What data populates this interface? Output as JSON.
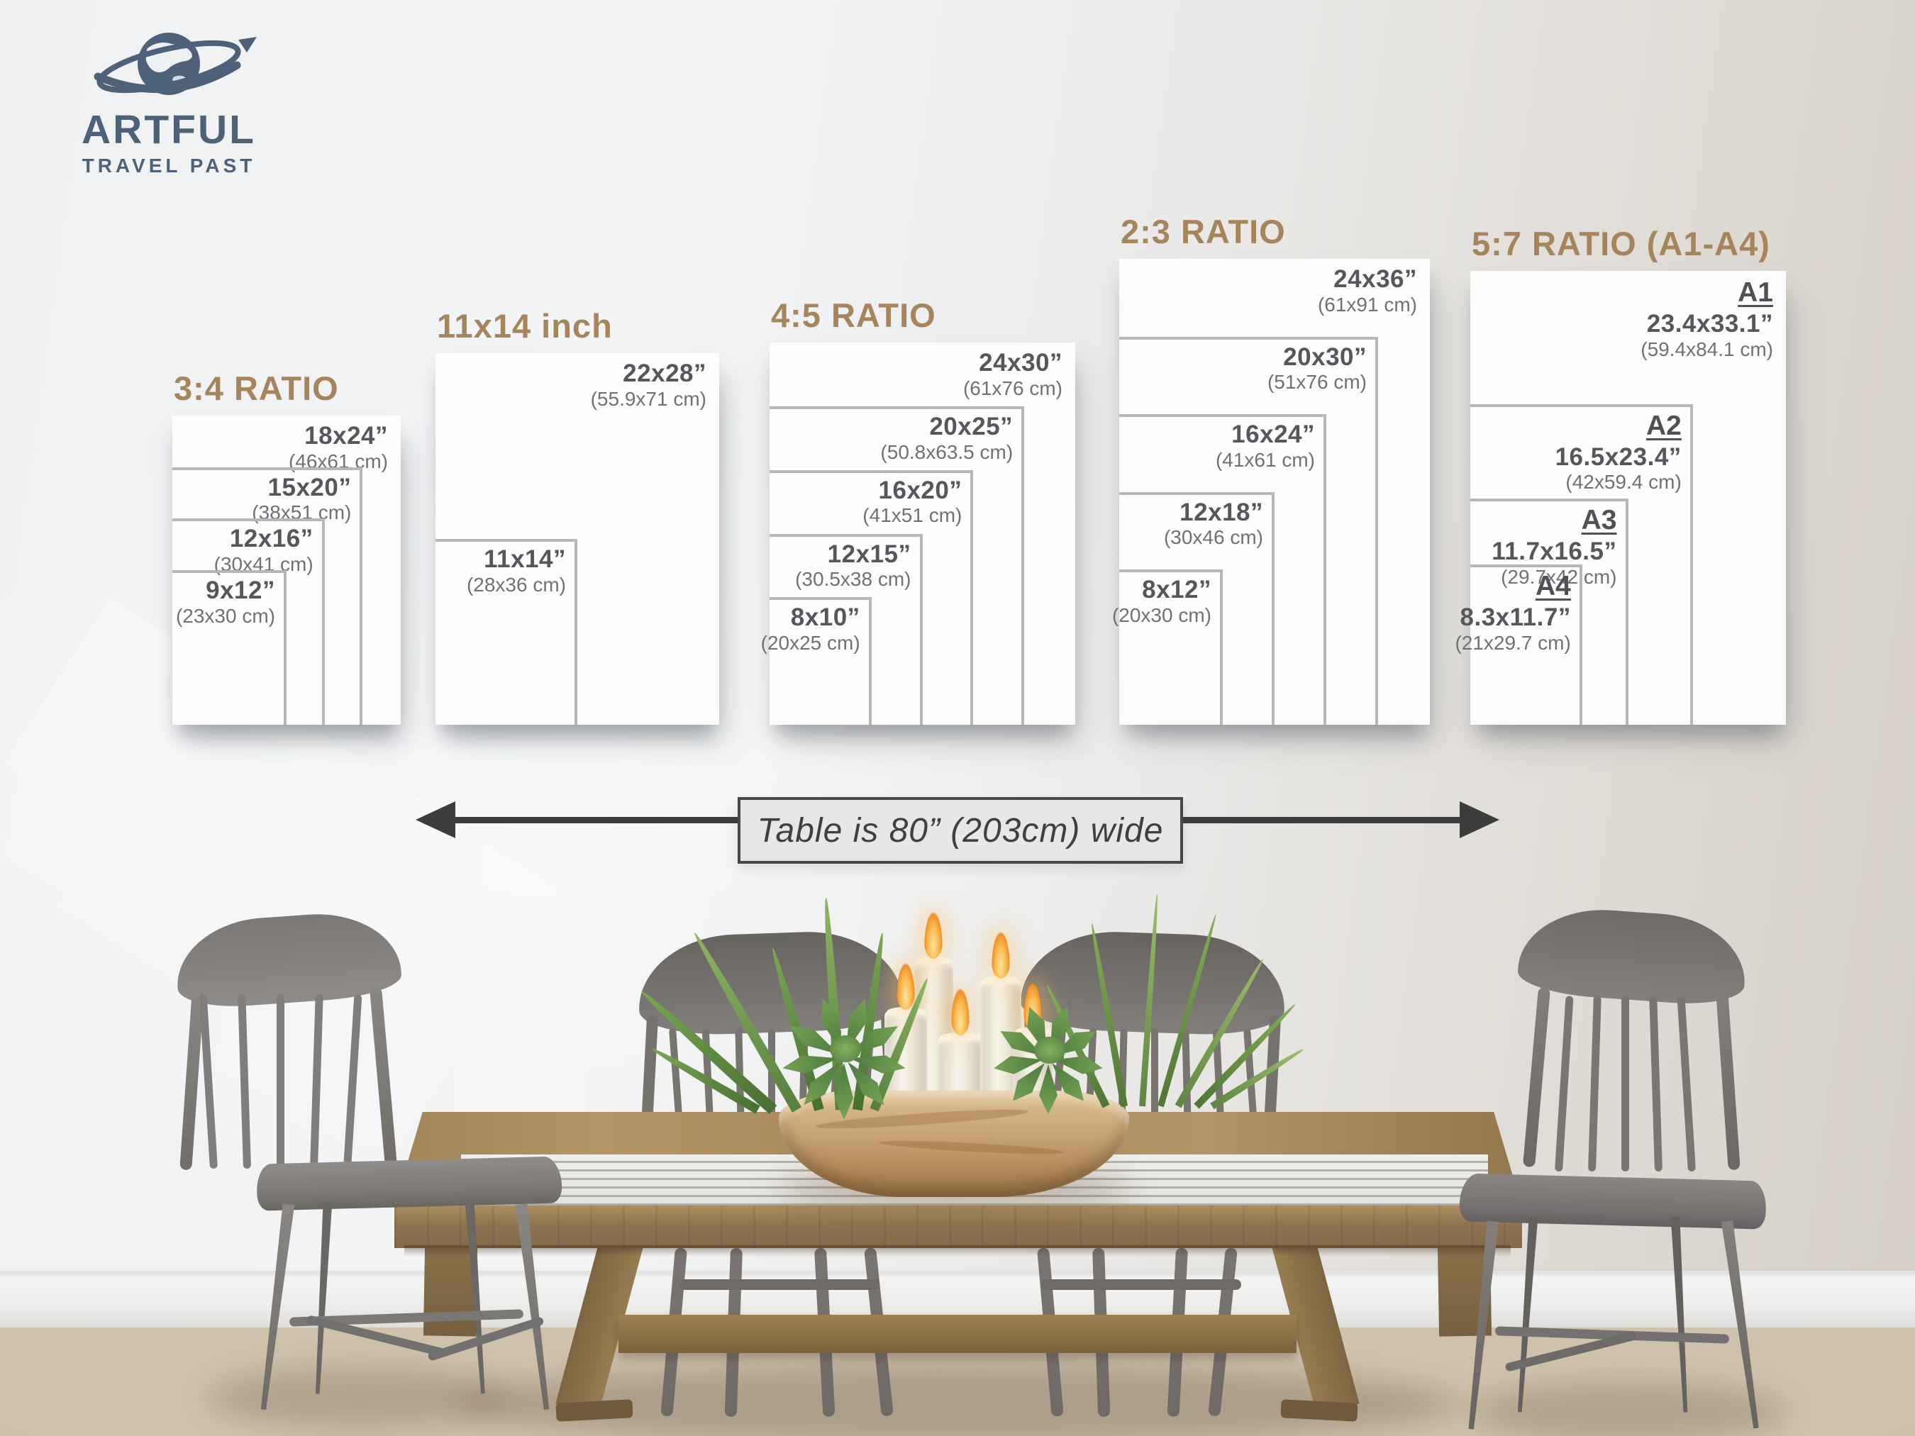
{
  "brand": {
    "line1": "ARTFUL",
    "line2": "TRAVEL PAST"
  },
  "icons": {
    "logo": "globe-orbit-icon",
    "width_arrow": "double-arrow-icon"
  },
  "colors": {
    "title_tan": "#a5855c",
    "label_dark": "#54575b",
    "label_muted": "#6e7175",
    "frame_gray": "#b5b8bb",
    "logo_blue": "#4d6278",
    "arrow_dark": "#3c3d3d",
    "poster_white": "#fdfdfd"
  },
  "table_note": "Table is 80” (203cm) wide",
  "size_groups": [
    {
      "title": "3:4 RATIO",
      "sizes": [
        {
          "inches": "18x24”",
          "cm": "(46x61 cm)",
          "w_in": 18,
          "h_in": 24
        },
        {
          "inches": "15x20”",
          "cm": "(38x51 cm)",
          "w_in": 15,
          "h_in": 20
        },
        {
          "inches": "12x16”",
          "cm": "(30x41 cm)",
          "w_in": 12,
          "h_in": 16
        },
        {
          "inches": "9x12”",
          "cm": "(23x30 cm)",
          "w_in": 9,
          "h_in": 12
        }
      ]
    },
    {
      "title": "11x14 inch",
      "sizes": [
        {
          "inches": "22x28”",
          "cm": "(55.9x71 cm)",
          "w_in": 22,
          "h_in": 28
        },
        {
          "inches": "11x14”",
          "cm": "(28x36 cm)",
          "w_in": 11,
          "h_in": 14
        }
      ]
    },
    {
      "title": "4:5 RATIO",
      "sizes": [
        {
          "inches": "24x30”",
          "cm": "(61x76 cm)",
          "w_in": 24,
          "h_in": 30
        },
        {
          "inches": "20x25”",
          "cm": "(50.8x63.5 cm)",
          "w_in": 20,
          "h_in": 25
        },
        {
          "inches": "16x20”",
          "cm": "(41x51 cm)",
          "w_in": 16,
          "h_in": 20
        },
        {
          "inches": "12x15”",
          "cm": "(30.5x38 cm)",
          "w_in": 12,
          "h_in": 15
        },
        {
          "inches": "8x10”",
          "cm": "(20x25 cm)",
          "w_in": 8,
          "h_in": 10
        }
      ]
    },
    {
      "title": "2:3 RATIO",
      "sizes": [
        {
          "inches": "24x36”",
          "cm": "(61x91 cm)",
          "w_in": 24,
          "h_in": 36
        },
        {
          "inches": "20x30”",
          "cm": "(51x76 cm)",
          "w_in": 20,
          "h_in": 30
        },
        {
          "inches": "16x24”",
          "cm": "(41x61 cm)",
          "w_in": 16,
          "h_in": 24
        },
        {
          "inches": "12x18”",
          "cm": "(30x46 cm)",
          "w_in": 12,
          "h_in": 18
        },
        {
          "inches": "8x12”",
          "cm": "(20x30 cm)",
          "w_in": 8,
          "h_in": 12
        }
      ]
    },
    {
      "title": "5:7 RATIO (A1-A4)",
      "sizes": [
        {
          "series": "A1",
          "inches": "23.4x33.1”",
          "cm": "(59.4x84.1 cm)",
          "w_in": 23.4,
          "h_in": 33.1
        },
        {
          "series": "A2",
          "inches": "16.5x23.4”",
          "cm": "(42x59.4 cm)",
          "w_in": 16.5,
          "h_in": 23.4
        },
        {
          "series": "A3",
          "inches": "11.7x16.5”",
          "cm": "(29.7x42 cm)",
          "w_in": 11.7,
          "h_in": 16.5
        },
        {
          "series": "A4",
          "inches": "8.3x11.7”",
          "cm": "(21x29.7 cm)",
          "w_in": 8.3,
          "h_in": 11.7
        }
      ]
    }
  ]
}
